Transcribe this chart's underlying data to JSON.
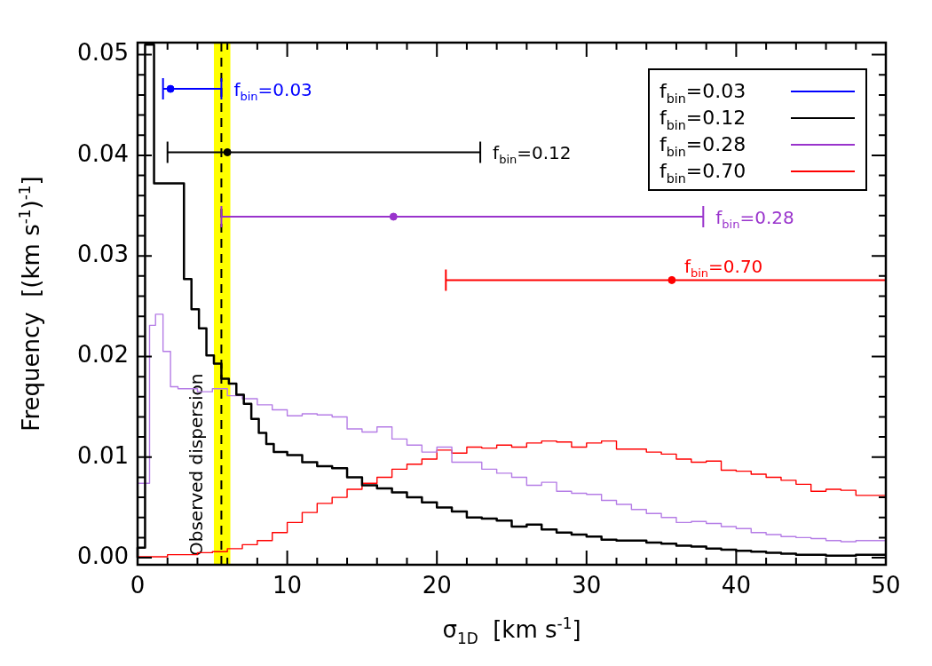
{
  "chart_data": {
    "type": "step",
    "xlabel": "σ$_{1D}$  [km s$^{-1}$]",
    "ylabel": "Frequency  [(km s$^{-1}$)$^{-1}$]",
    "xlim": [
      0,
      50
    ],
    "xticks": [
      0,
      {
        "value": 2,
        "label": null
      },
      {
        "value": 4,
        "label": null
      },
      {
        "value": 6,
        "label": null
      },
      {
        "value": 8,
        "label": null
      },
      10,
      {
        "value": 12,
        "label": null
      },
      {
        "value": 14,
        "label": null
      },
      {
        "value": 16,
        "label": null
      },
      {
        "value": 18,
        "label": null
      },
      20,
      {
        "value": 22,
        "label": null
      },
      {
        "value": 24,
        "label": null
      },
      {
        "value": 26,
        "label": null
      },
      {
        "value": 28,
        "label": null
      },
      30,
      {
        "value": 32,
        "label": null
      },
      {
        "value": 34,
        "label": null
      },
      {
        "value": 36,
        "label": null
      },
      {
        "value": 38,
        "label": null
      },
      40,
      {
        "value": 42,
        "label": null
      },
      {
        "value": 44,
        "label": null
      },
      {
        "value": 46,
        "label": null
      },
      {
        "value": 48,
        "label": null
      },
      50
    ],
    "ylim": [
      -0.0007,
      0.0512
    ],
    "yticks": [
      {
        "value": 0,
        "label": "0.00"
      },
      {
        "value": 0.002,
        "label": null
      },
      {
        "value": 0.004,
        "label": null
      },
      {
        "value": 0.006,
        "label": null
      },
      {
        "value": 0.008,
        "label": null
      },
      {
        "value": 0.01,
        "label": "0.01"
      },
      {
        "value": 0.012,
        "label": null
      },
      {
        "value": 0.014,
        "label": null
      },
      {
        "value": 0.016,
        "label": null
      },
      {
        "value": 0.018,
        "label": null
      },
      {
        "value": 0.02,
        "label": "0.02"
      },
      {
        "value": 0.022,
        "label": null
      },
      {
        "value": 0.024,
        "label": null
      },
      {
        "value": 0.026,
        "label": null
      },
      {
        "value": 0.028,
        "label": null
      },
      {
        "value": 0.03,
        "label": "0.03"
      },
      {
        "value": 0.032,
        "label": null
      },
      {
        "value": 0.034,
        "label": null
      },
      {
        "value": 0.036,
        "label": null
      },
      {
        "value": 0.038,
        "label": null
      },
      {
        "value": 0.04,
        "label": "0.04"
      },
      {
        "value": 0.042,
        "label": null
      },
      {
        "value": 0.044,
        "label": null
      },
      {
        "value": 0.046,
        "label": null
      },
      {
        "value": 0.048,
        "label": null
      },
      {
        "value": 0.05,
        "label": "0.05"
      }
    ],
    "grid": false,
    "legend": "top right",
    "bands": [
      {
        "axis": "x",
        "from": 5.1,
        "to": 6.2,
        "label": "Observed dispersion",
        "color": "#ffff00"
      }
    ],
    "ref_lines": [
      {
        "axis": "x",
        "value": 5.6,
        "label": null,
        "color": "#000000",
        "line_style": "dashed"
      }
    ],
    "series": [
      {
        "type": "step",
        "color": "#000000",
        "x": [
          0,
          0.5,
          1.1,
          3.1,
          3.6,
          4.1,
          4.6,
          5.1,
          5.6,
          6.1,
          6.6,
          7.1,
          7.6,
          8.1,
          8.6,
          9.1,
          10,
          11,
          12,
          13,
          14,
          15,
          16,
          17,
          18,
          19,
          20,
          21,
          22,
          23,
          24,
          25,
          26,
          27,
          28,
          29,
          30,
          31,
          32,
          33,
          34,
          35,
          36,
          37,
          38,
          39,
          40,
          41,
          42,
          43,
          44,
          45,
          46,
          47,
          48,
          49,
          50
        ],
        "values": [
          0,
          0.001,
          0.051,
          0.0372,
          0.0277,
          0.0247,
          0.0228,
          0.0201,
          0.0193,
          0.0178,
          0.0173,
          0.0162,
          0.0153,
          0.0138,
          0.0124,
          0.0113,
          0.0105,
          0.0102,
          0.0095,
          0.0091,
          0.0089,
          0.008,
          0.0072,
          0.0069,
          0.0065,
          0.006,
          0.0055,
          0.005,
          0.0046,
          0.004,
          0.0039,
          0.0037,
          0.0031,
          0.0033,
          0.0028,
          0.0025,
          0.0023,
          0.0021,
          0.0018,
          0.0017,
          0.0017,
          0.0015,
          0.0014,
          0.0012,
          0.0011,
          0.0009,
          0.0008,
          0.0007,
          0.0006,
          0.0005,
          0.0004,
          0.0003,
          0.0003,
          0.0002,
          0.0002,
          0.0003,
          0.0003
        ]
      },
      {
        "type": "step",
        "color": "#b57de6",
        "x": [
          0,
          0.8,
          1.2,
          1.7,
          2.2,
          2.7,
          4,
          5,
          6,
          7,
          8,
          9,
          10,
          11,
          12,
          13,
          14,
          15,
          16,
          17,
          18,
          19,
          20,
          21,
          22,
          23,
          24,
          25,
          26,
          27,
          28,
          29,
          30,
          31,
          32,
          33,
          34,
          35,
          36,
          37,
          38,
          39,
          40,
          41,
          42,
          43,
          44,
          45,
          46,
          47,
          48,
          49,
          50
        ],
        "values": [
          0,
          0.0074,
          0.0231,
          0.0242,
          0.0205,
          0.017,
          0.0168,
          0.0165,
          0.0168,
          0.0161,
          0.0158,
          0.0152,
          0.0147,
          0.0141,
          0.0143,
          0.0142,
          0.014,
          0.0128,
          0.0125,
          0.013,
          0.0118,
          0.0112,
          0.0105,
          0.011,
          0.0095,
          0.0095,
          0.0088,
          0.0084,
          0.008,
          0.0072,
          0.0075,
          0.0066,
          0.0064,
          0.0063,
          0.0057,
          0.0053,
          0.0048,
          0.0044,
          0.004,
          0.0035,
          0.0036,
          0.0034,
          0.0031,
          0.0029,
          0.0025,
          0.0023,
          0.0021,
          0.002,
          0.0019,
          0.0017,
          0.0016,
          0.0017,
          0.0017
        ]
      },
      {
        "type": "step",
        "color": "#ff0000",
        "x": [
          0,
          2,
          4,
          5,
          6,
          7,
          8,
          9,
          10,
          11,
          12,
          13,
          14,
          15,
          16,
          17,
          18,
          19,
          20,
          21,
          22,
          23,
          24,
          25,
          26,
          27,
          28,
          29,
          30,
          31,
          32,
          33,
          34,
          35,
          36,
          37,
          38,
          39,
          40,
          41,
          42,
          43,
          44,
          45,
          46,
          47,
          48,
          49,
          50
        ],
        "values": [
          0,
          0.0001,
          0.0003,
          0.0005,
          0.0006,
          0.0009,
          0.0013,
          0.0017,
          0.0025,
          0.0035,
          0.0045,
          0.0054,
          0.006,
          0.0068,
          0.0074,
          0.008,
          0.0088,
          0.0093,
          0.0098,
          0.0107,
          0.0104,
          0.011,
          0.0109,
          0.0112,
          0.011,
          0.0114,
          0.0116,
          0.0115,
          0.011,
          0.0114,
          0.0116,
          0.0108,
          0.0108,
          0.0105,
          0.0103,
          0.0098,
          0.0095,
          0.0096,
          0.0087,
          0.0086,
          0.0083,
          0.008,
          0.0077,
          0.0073,
          0.0066,
          0.0068,
          0.0067,
          0.0062,
          0.0062
        ]
      },
      {
        "type": "scatter",
        "name": "f$_{bin}$=0.03",
        "color": "#0000ff",
        "marker": "circle",
        "x": [
          2.2
        ],
        "values": [
          0.0466
        ],
        "xerrors": [
          [
            1.7,
            5.6
          ]
        ]
      },
      {
        "type": "scatter",
        "name": "f$_{bin}$=0.12",
        "color": "#000000",
        "marker": "circle",
        "x": [
          6.0
        ],
        "values": [
          0.0403
        ],
        "xerrors": [
          [
            2.0,
            22.9
          ]
        ]
      },
      {
        "type": "scatter",
        "name": "f$_{bin}$=0.28",
        "color": "#9933cc",
        "marker": "circle",
        "x": [
          17.1
        ],
        "values": [
          0.0339
        ],
        "xerrors": [
          [
            5.6,
            37.8
          ]
        ]
      },
      {
        "type": "scatter",
        "name": "f$_{bin}$=0.70",
        "color": "#ff0000",
        "marker": "circle",
        "x": [
          35.7
        ],
        "values": [
          0.0276
        ],
        "xerrors": [
          [
            20.6,
            50
          ]
        ]
      }
    ]
  }
}
